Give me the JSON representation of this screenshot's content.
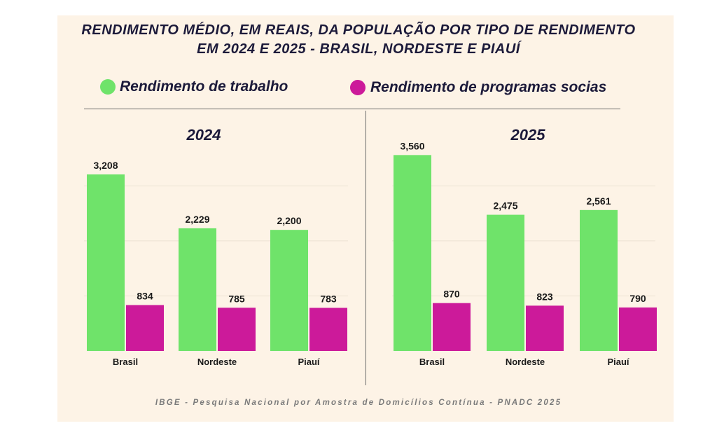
{
  "title_line1": "RENDIMENTO MÉDIO, EM REAIS, DA POPULAÇÃO POR TIPO DE RENDIMENTO",
  "title_line2": "EM 2024 E 2025 - BRASIL, NORDESTE E PIAUÍ",
  "legend": [
    {
      "label": "Rendimento de trabalho",
      "color": "#6fe36a"
    },
    {
      "label": "Rendimento de programas socias",
      "color": "#cc1a9a"
    }
  ],
  "source": "IBGE - Pesquisa Nacional por Amostra de Domicílios Contínua - PNADC 2025",
  "chart_data": [
    {
      "type": "bar",
      "title": "2024",
      "categories": [
        "Brasil",
        "Nordeste",
        "Piauí"
      ],
      "series": [
        {
          "name": "Rendimento de trabalho",
          "values": [
            3208,
            2229,
            2200
          ],
          "labels": [
            "3,208",
            "2,229",
            "2,200"
          ]
        },
        {
          "name": "Rendimento de programas socias",
          "values": [
            834,
            785,
            783
          ],
          "labels": [
            "834",
            "785",
            "783"
          ]
        }
      ],
      "grid": true
    },
    {
      "type": "bar",
      "title": "2025",
      "categories": [
        "Brasil",
        "Nordeste",
        "Piauí"
      ],
      "series": [
        {
          "name": "Rendimento de trabalho",
          "values": [
            3560,
            2475,
            2561
          ],
          "labels": [
            "3,560",
            "2,475",
            "2,561"
          ]
        },
        {
          "name": "Rendimento de programas socias",
          "values": [
            870,
            823,
            790
          ],
          "labels": [
            "870",
            "823",
            "790"
          ]
        }
      ],
      "grid": true
    }
  ]
}
